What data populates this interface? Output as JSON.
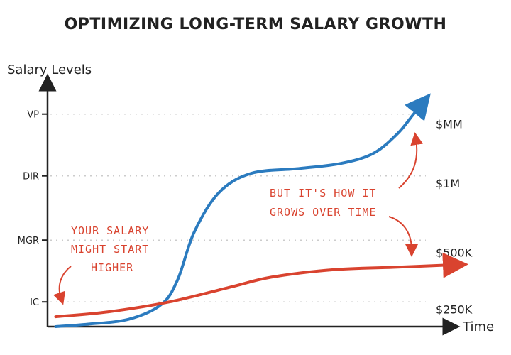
{
  "title": "OPTIMIZING LONG-TERM SALARY GROWTH",
  "chart_data": {
    "type": "line",
    "xlabel": "Time",
    "ylabel": "Salary Levels",
    "xlim": [
      0,
      100
    ],
    "ylim": [
      0,
      100
    ],
    "y_ticks": [
      {
        "label": "IC",
        "value": 10
      },
      {
        "label": "MGR",
        "value": 35
      },
      {
        "label": "DIR",
        "value": 61
      },
      {
        "label": "VP",
        "value": 86
      }
    ],
    "right_labels": [
      {
        "label": "$MM",
        "value": 82
      },
      {
        "label": "$1M",
        "value": 58
      },
      {
        "label": "$500K",
        "value": 30
      },
      {
        "label": "$250K",
        "value": 7
      }
    ],
    "grid": true,
    "series": [
      {
        "color": "#2b7bbf",
        "points": [
          [
            2,
            0
          ],
          [
            10,
            1
          ],
          [
            20,
            3
          ],
          [
            28,
            9
          ],
          [
            32,
            19
          ],
          [
            36,
            38
          ],
          [
            42,
            54
          ],
          [
            50,
            62
          ],
          [
            62,
            64
          ],
          [
            72,
            66
          ],
          [
            80,
            70
          ],
          [
            86,
            78
          ],
          [
            90,
            86
          ],
          [
            92,
            90
          ]
        ]
      },
      {
        "color": "#d9432f",
        "points": [
          [
            2,
            4
          ],
          [
            15,
            6
          ],
          [
            30,
            10
          ],
          [
            45,
            16
          ],
          [
            55,
            20
          ],
          [
            70,
            23
          ],
          [
            85,
            24
          ],
          [
            100,
            25
          ]
        ]
      }
    ],
    "annotations": [
      {
        "lines": [
          "YOUR SALARY",
          "MIGHT START",
          "HIGHER"
        ]
      },
      {
        "lines": [
          "BUT IT'S HOW IT",
          "GROWS OVER TIME"
        ]
      }
    ]
  }
}
